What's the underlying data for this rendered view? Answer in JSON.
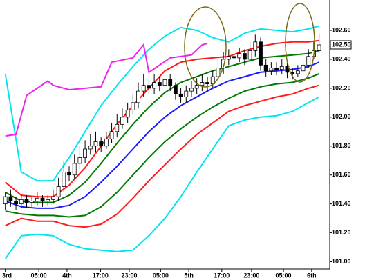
{
  "chart_data": {
    "type": "candlestick",
    "ylim": [
      100.95,
      102.81
    ],
    "yticks": [
      {
        "value": 101,
        "label": "101.00"
      },
      {
        "value": 101.2,
        "label": "101.20"
      },
      {
        "value": 101.4,
        "label": "101.40"
      },
      {
        "value": 101.6,
        "label": "101.60"
      },
      {
        "value": 101.8,
        "label": "101.80"
      },
      {
        "value": 102,
        "label": "102.00"
      },
      {
        "value": 102.2,
        "label": "102.20"
      },
      {
        "value": 102.4,
        "label": "102.40"
      },
      {
        "value": 102.6,
        "label": "102.60"
      }
    ],
    "xlim": [
      -1,
      61
    ],
    "xticks": [
      {
        "value": 0,
        "label": "3rd"
      },
      {
        "value": 6.3,
        "label": "05:00"
      },
      {
        "value": 11.6,
        "label": "4th"
      },
      {
        "value": 17.9,
        "label": "17:00"
      },
      {
        "value": 23.3,
        "label": "23:00"
      },
      {
        "value": 29.2,
        "label": "05:00"
      },
      {
        "value": 34.5,
        "label": "5th"
      },
      {
        "value": 40.7,
        "label": "17:00"
      },
      {
        "value": 46.3,
        "label": "23:00"
      },
      {
        "value": 52.3,
        "label": "05:00"
      },
      {
        "value": 57.6,
        "label": "6th"
      }
    ],
    "current_price": {
      "value": 102.5,
      "label": "102.50"
    },
    "candles": {
      "x": [
        0,
        1,
        2,
        3,
        4,
        5,
        6,
        7,
        8,
        9,
        10,
        11,
        12,
        13,
        14,
        15,
        16,
        17,
        18,
        19,
        20,
        21,
        22,
        23,
        24,
        25,
        26,
        27,
        28,
        29,
        30,
        31,
        32,
        33,
        34,
        35,
        36,
        37,
        38,
        39,
        40,
        41,
        42,
        43,
        44,
        45,
        46,
        47,
        48,
        49,
        50,
        51,
        52,
        53,
        54,
        55,
        56,
        57,
        58,
        59
      ],
      "open": [
        101.4,
        101.45,
        101.42,
        101.4,
        101.43,
        101.41,
        101.42,
        101.44,
        101.42,
        101.43,
        101.45,
        101.52,
        101.62,
        101.6,
        101.68,
        101.72,
        101.78,
        101.8,
        101.83,
        101.8,
        101.85,
        101.9,
        101.95,
        102.0,
        102.05,
        102.1,
        102.18,
        102.22,
        102.2,
        102.24,
        102.22,
        102.26,
        102.22,
        102.16,
        102.14,
        102.18,
        102.2,
        102.22,
        102.24,
        102.23,
        102.28,
        102.34,
        102.4,
        102.42,
        102.41,
        102.44,
        102.4,
        102.46,
        102.52,
        102.36,
        102.32,
        102.34,
        102.33,
        102.35,
        102.31,
        102.3,
        102.32,
        102.36,
        102.42,
        102.46
      ],
      "high": [
        101.48,
        101.5,
        101.45,
        101.47,
        101.46,
        101.45,
        101.48,
        101.46,
        101.46,
        101.5,
        101.58,
        101.7,
        101.66,
        101.74,
        101.8,
        101.84,
        101.88,
        101.9,
        101.86,
        101.9,
        101.96,
        102.02,
        102.06,
        102.1,
        102.16,
        102.24,
        102.3,
        102.26,
        102.3,
        102.28,
        102.32,
        102.3,
        102.24,
        102.2,
        102.22,
        102.25,
        102.27,
        102.3,
        102.28,
        102.32,
        102.4,
        102.45,
        102.47,
        102.46,
        102.48,
        102.47,
        102.52,
        102.57,
        102.55,
        102.4,
        102.38,
        102.38,
        102.4,
        102.38,
        102.34,
        102.36,
        102.4,
        102.47,
        102.52,
        102.58
      ],
      "low": [
        101.36,
        101.38,
        101.36,
        101.37,
        101.37,
        101.38,
        101.39,
        101.38,
        101.39,
        101.4,
        101.42,
        101.48,
        101.56,
        101.57,
        101.64,
        101.68,
        101.74,
        101.76,
        101.76,
        101.78,
        101.82,
        101.86,
        101.92,
        101.96,
        102.02,
        102.06,
        102.14,
        102.16,
        102.16,
        102.18,
        102.18,
        102.18,
        102.12,
        102.1,
        102.1,
        102.14,
        102.16,
        102.18,
        102.18,
        102.2,
        102.25,
        102.3,
        102.36,
        102.37,
        102.38,
        102.36,
        102.38,
        102.42,
        102.32,
        102.28,
        102.29,
        102.29,
        102.3,
        102.27,
        102.26,
        102.28,
        102.3,
        102.34,
        102.4,
        102.44
      ],
      "close": [
        101.45,
        101.42,
        101.4,
        101.43,
        101.41,
        101.42,
        101.44,
        101.42,
        101.43,
        101.45,
        101.52,
        101.62,
        101.6,
        101.68,
        101.72,
        101.78,
        101.8,
        101.83,
        101.8,
        101.85,
        101.9,
        101.95,
        102.0,
        102.05,
        102.1,
        102.18,
        102.22,
        102.2,
        102.24,
        102.22,
        102.26,
        102.22,
        102.16,
        102.14,
        102.18,
        102.2,
        102.22,
        102.24,
        102.23,
        102.28,
        102.34,
        102.4,
        102.42,
        102.41,
        102.44,
        102.4,
        102.46,
        102.52,
        102.36,
        102.32,
        102.34,
        102.33,
        102.35,
        102.31,
        102.3,
        102.32,
        102.36,
        102.42,
        102.46,
        102.5
      ]
    },
    "series": [
      {
        "color": "#00e5ee",
        "x": [
          0,
          3,
          6,
          9,
          12,
          15,
          18,
          21,
          24,
          27,
          30,
          33,
          36,
          39,
          42,
          45,
          48,
          51,
          54,
          57,
          59
        ],
        "values": [
          102.3,
          101.62,
          101.56,
          101.56,
          101.72,
          101.9,
          102.08,
          102.22,
          102.35,
          102.47,
          102.56,
          102.62,
          102.6,
          102.55,
          102.52,
          102.58,
          102.61,
          102.6,
          102.59,
          102.61,
          102.63
        ]
      },
      {
        "color": "#ff1a1a",
        "x": [
          0,
          3,
          6,
          9,
          12,
          15,
          18,
          21,
          24,
          27,
          30,
          33,
          36,
          39,
          42,
          45,
          48,
          51,
          54,
          57,
          59
        ],
        "values": [
          101.55,
          101.46,
          101.45,
          101.45,
          101.53,
          101.65,
          101.8,
          101.95,
          102.08,
          102.2,
          102.32,
          102.38,
          102.4,
          102.41,
          102.42,
          102.46,
          102.49,
          102.51,
          102.52,
          102.52,
          102.53
        ]
      },
      {
        "color": "#007a00",
        "x": [
          0,
          3,
          6,
          9,
          12,
          15,
          18,
          21,
          24,
          27,
          30,
          33,
          36,
          39,
          42,
          45,
          48,
          51,
          54,
          57,
          59
        ],
        "values": [
          101.48,
          101.42,
          101.41,
          101.41,
          101.46,
          101.55,
          101.68,
          101.82,
          101.95,
          102.07,
          102.17,
          102.24,
          102.28,
          102.32,
          102.35,
          102.38,
          102.41,
          102.42,
          102.43,
          102.44,
          102.46
        ]
      },
      {
        "color": "#1a1aff",
        "x": [
          0,
          3,
          6,
          9,
          12,
          15,
          18,
          21,
          24,
          27,
          30,
          33,
          36,
          39,
          42,
          45,
          48,
          51,
          54,
          57,
          59
        ],
        "values": [
          101.42,
          101.38,
          101.37,
          101.37,
          101.39,
          101.45,
          101.55,
          101.66,
          101.78,
          101.9,
          102.0,
          102.08,
          102.14,
          102.2,
          102.25,
          102.28,
          102.31,
          102.32,
          102.33,
          102.35,
          102.38
        ]
      },
      {
        "color": "#007a00",
        "x": [
          0,
          3,
          6,
          9,
          12,
          15,
          18,
          21,
          24,
          27,
          30,
          33,
          36,
          39,
          42,
          45,
          48,
          51,
          54,
          57,
          59
        ],
        "values": [
          101.35,
          101.33,
          101.32,
          101.32,
          101.31,
          101.32,
          101.38,
          101.48,
          101.6,
          101.72,
          101.83,
          101.92,
          102.0,
          102.07,
          102.13,
          102.18,
          102.21,
          102.23,
          102.24,
          102.27,
          102.3
        ]
      },
      {
        "color": "#ff1a1a",
        "x": [
          0,
          3,
          6,
          9,
          12,
          15,
          18,
          21,
          24,
          27,
          30,
          33,
          36,
          39,
          42,
          45,
          48,
          51,
          54,
          57,
          59
        ],
        "values": [
          101.25,
          101.3,
          101.28,
          101.28,
          101.25,
          101.24,
          101.26,
          101.33,
          101.44,
          101.56,
          101.67,
          101.78,
          101.88,
          101.96,
          102.04,
          102.08,
          102.11,
          102.14,
          102.16,
          102.2,
          102.22
        ]
      },
      {
        "color": "#00e5ee",
        "x": [
          0,
          3,
          6,
          9,
          12,
          15,
          18,
          21,
          24,
          27,
          30,
          33,
          36,
          39,
          42,
          45,
          48,
          51,
          54,
          57,
          59
        ],
        "values": [
          101.02,
          101.18,
          101.19,
          101.18,
          101.12,
          101.09,
          101.08,
          101.07,
          101.08,
          101.18,
          101.3,
          101.45,
          101.62,
          101.78,
          101.94,
          101.98,
          102.0,
          102.01,
          102.04,
          102.1,
          102.14
        ]
      },
      {
        "color": "#ee22ee",
        "x": [
          0,
          2,
          4,
          8,
          9,
          12,
          15,
          18,
          20,
          24,
          26,
          27,
          29,
          31,
          35,
          37,
          38
        ],
        "values": [
          101.87,
          101.88,
          102.15,
          102.25,
          102.22,
          102.19,
          102.2,
          102.21,
          102.38,
          102.41,
          102.5,
          102.31,
          102.36,
          102.41,
          102.43,
          102.5,
          102.51
        ]
      }
    ]
  }
}
